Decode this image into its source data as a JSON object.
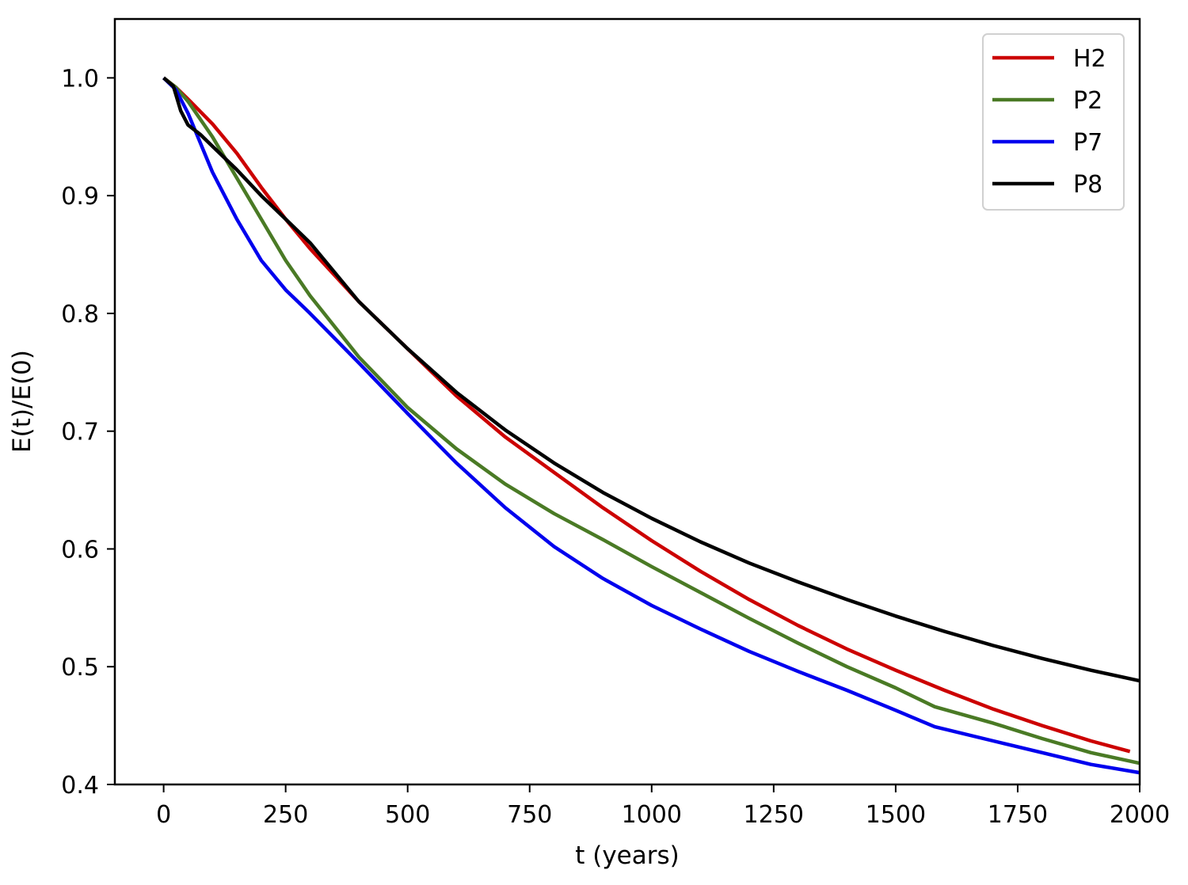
{
  "chart_data": {
    "type": "line",
    "title": "",
    "xlabel": "t (years)",
    "ylabel": "E(t)/E(0)",
    "xlim": [
      -100,
      2000
    ],
    "ylim": [
      0.4,
      1.05
    ],
    "xticks": [
      0,
      250,
      500,
      750,
      1000,
      1250,
      1500,
      1750,
      2000
    ],
    "xtick_labels": [
      "0",
      "250",
      "500",
      "750",
      "1000",
      "1250",
      "1500",
      "1750",
      "2000"
    ],
    "yticks": [
      0.4,
      0.5,
      0.6,
      0.7,
      0.8,
      0.9,
      1.0
    ],
    "ytick_labels": [
      "0.4",
      "0.5",
      "0.6",
      "0.7",
      "0.8",
      "0.9",
      "1.0"
    ],
    "grid": false,
    "legend_position": "top-right",
    "series": [
      {
        "name": "H2",
        "color": "#cc0000",
        "x": [
          0,
          25,
          50,
          100,
          150,
          200,
          250,
          300,
          400,
          500,
          600,
          700,
          800,
          900,
          1000,
          1100,
          1200,
          1300,
          1400,
          1500,
          1600,
          1700,
          1800,
          1900,
          1980
        ],
        "y": [
          1.0,
          0.992,
          0.982,
          0.961,
          0.936,
          0.907,
          0.88,
          0.855,
          0.81,
          0.77,
          0.73,
          0.695,
          0.665,
          0.635,
          0.607,
          0.581,
          0.557,
          0.535,
          0.515,
          0.497,
          0.48,
          0.464,
          0.45,
          0.437,
          0.428
        ]
      },
      {
        "name": "P2",
        "color": "#4a7a25",
        "x": [
          0,
          25,
          50,
          100,
          150,
          200,
          250,
          300,
          400,
          500,
          600,
          700,
          800,
          900,
          1000,
          1100,
          1200,
          1300,
          1400,
          1500,
          1580,
          1700,
          1800,
          1900,
          2000
        ],
        "y": [
          1.0,
          0.992,
          0.98,
          0.95,
          0.915,
          0.88,
          0.845,
          0.815,
          0.763,
          0.72,
          0.685,
          0.655,
          0.63,
          0.608,
          0.585,
          0.563,
          0.541,
          0.52,
          0.5,
          0.482,
          0.466,
          0.452,
          0.439,
          0.427,
          0.418
        ]
      },
      {
        "name": "P7",
        "color": "#0000ee",
        "x": [
          0,
          25,
          50,
          75,
          100,
          150,
          200,
          250,
          300,
          400,
          500,
          600,
          700,
          800,
          900,
          1000,
          1100,
          1200,
          1300,
          1400,
          1500,
          1580,
          1700,
          1800,
          1900,
          2000
        ],
        "y": [
          1.0,
          0.99,
          0.97,
          0.945,
          0.92,
          0.88,
          0.845,
          0.82,
          0.8,
          0.758,
          0.715,
          0.673,
          0.635,
          0.602,
          0.575,
          0.552,
          0.532,
          0.513,
          0.496,
          0.48,
          0.463,
          0.449,
          0.437,
          0.427,
          0.417,
          0.41
        ]
      },
      {
        "name": "P8",
        "color": "#000000",
        "x": [
          0,
          20,
          35,
          50,
          75,
          100,
          150,
          200,
          250,
          300,
          400,
          500,
          600,
          700,
          800,
          900,
          1000,
          1100,
          1200,
          1300,
          1400,
          1500,
          1600,
          1700,
          1800,
          1900,
          2000
        ],
        "y": [
          1.0,
          0.993,
          0.972,
          0.96,
          0.952,
          0.942,
          0.922,
          0.9,
          0.88,
          0.86,
          0.81,
          0.77,
          0.733,
          0.701,
          0.673,
          0.648,
          0.626,
          0.606,
          0.588,
          0.572,
          0.557,
          0.543,
          0.53,
          0.518,
          0.507,
          0.497,
          0.488
        ]
      }
    ]
  }
}
